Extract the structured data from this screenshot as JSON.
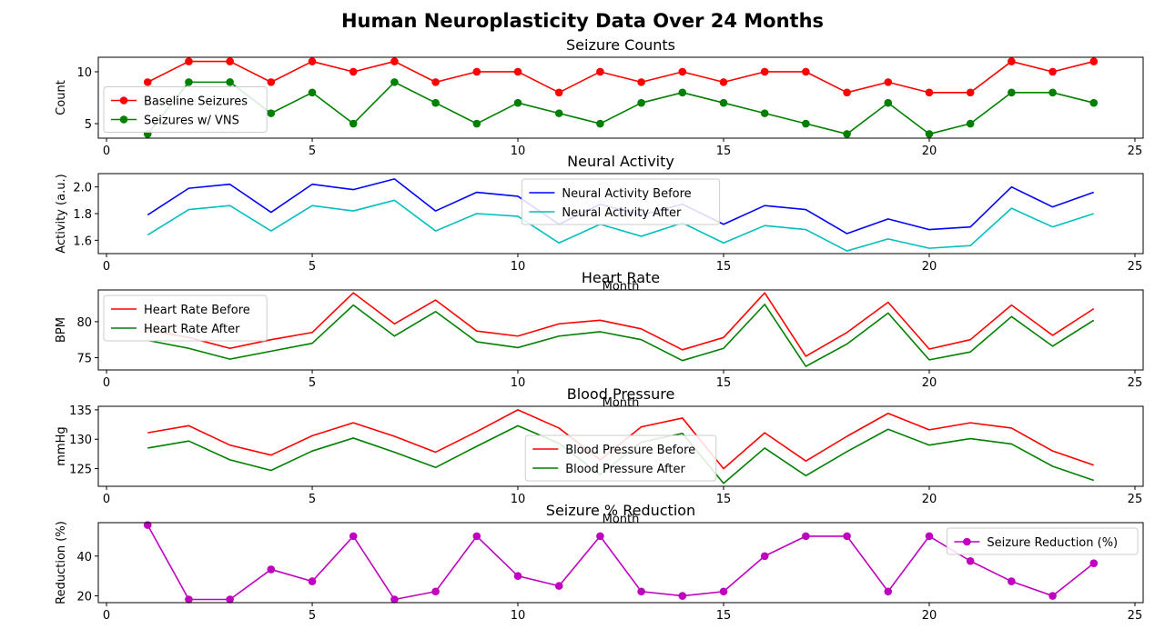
{
  "figure": {
    "title": "Human Neuroplasticity Data Over 24 Months"
  },
  "chart_data": [
    {
      "type": "line",
      "title": "Seizure Counts",
      "xlabel": "",
      "ylabel": "Count",
      "xlim": [
        -0.2,
        25.2
      ],
      "ylim": [
        3.6,
        11.4
      ],
      "xticks": [
        0,
        5,
        10,
        15,
        20,
        25
      ],
      "yticks": [
        5,
        10
      ],
      "legend": "center-left",
      "x": [
        1,
        2,
        3,
        4,
        5,
        6,
        7,
        8,
        9,
        10,
        11,
        12,
        13,
        14,
        15,
        16,
        17,
        18,
        19,
        20,
        21,
        22,
        23,
        24
      ],
      "series": [
        {
          "name": "Baseline Seizures",
          "color": "#ff0000",
          "marker": "circle",
          "values": [
            9,
            11,
            11,
            9,
            11,
            10,
            11,
            9,
            10,
            10,
            8,
            10,
            9,
            10,
            9,
            10,
            10,
            8,
            9,
            8,
            8,
            11,
            10,
            11
          ]
        },
        {
          "name": "Seizures w/ VNS",
          "color": "#008000",
          "marker": "circle",
          "values": [
            4,
            9,
            9,
            6,
            8,
            5,
            9,
            7,
            5,
            7,
            6,
            5,
            7,
            8,
            7,
            6,
            5,
            4,
            7,
            4,
            5,
            8,
            8,
            7
          ]
        }
      ]
    },
    {
      "type": "line",
      "title": "Neural Activity",
      "xlabel": "Month",
      "ylabel": "Activity (a.u.)",
      "xlim": [
        -0.2,
        25.2
      ],
      "ylim": [
        1.5,
        2.1
      ],
      "xticks": [
        0,
        5,
        10,
        15,
        20,
        25
      ],
      "yticks": [
        1.6,
        1.8,
        2.0
      ],
      "ytick_labels": [
        "1.6",
        "1.8",
        "2.0"
      ],
      "legend": "upper-center",
      "x": [
        1,
        2,
        3,
        4,
        5,
        6,
        7,
        8,
        9,
        10,
        11,
        12,
        13,
        14,
        15,
        16,
        17,
        18,
        19,
        20,
        21,
        22,
        23,
        24
      ],
      "series": [
        {
          "name": "Neural Activity Before",
          "color": "#0000ff",
          "values": [
            1.79,
            1.99,
            2.02,
            1.81,
            2.02,
            1.98,
            2.06,
            1.82,
            1.96,
            1.93,
            1.72,
            1.87,
            1.79,
            1.87,
            1.72,
            1.86,
            1.83,
            1.65,
            1.76,
            1.68,
            1.7,
            2.0,
            1.85,
            1.96
          ]
        },
        {
          "name": "Neural Activity After",
          "color": "#00bfbf",
          "values": [
            1.64,
            1.83,
            1.86,
            1.67,
            1.86,
            1.82,
            1.9,
            1.67,
            1.8,
            1.78,
            1.58,
            1.72,
            1.63,
            1.73,
            1.58,
            1.71,
            1.68,
            1.52,
            1.61,
            1.54,
            1.56,
            1.84,
            1.7,
            1.8
          ]
        }
      ]
    },
    {
      "type": "line",
      "title": "Heart Rate",
      "xlabel": "Month",
      "ylabel": "BPM",
      "xlim": [
        -0.2,
        25.2
      ],
      "ylim": [
        73.3,
        84.4
      ],
      "xticks": [
        0,
        5,
        10,
        15,
        20,
        25
      ],
      "yticks": [
        75,
        80
      ],
      "legend": "upper-left",
      "x": [
        1,
        2,
        3,
        4,
        5,
        6,
        7,
        8,
        9,
        10,
        11,
        12,
        13,
        14,
        15,
        16,
        17,
        18,
        19,
        20,
        21,
        22,
        23,
        24
      ],
      "series": [
        {
          "name": "Heart Rate Before",
          "color": "#ff0000",
          "values": [
            78.8,
            77.8,
            76.3,
            77.5,
            78.5,
            84.0,
            79.7,
            83.0,
            78.7,
            78.0,
            79.7,
            80.2,
            79.0,
            76.1,
            77.8,
            84.0,
            75.2,
            78.5,
            82.7,
            76.2,
            77.5,
            82.3,
            78.1,
            81.8
          ]
        },
        {
          "name": "Heart Rate After",
          "color": "#008000",
          "values": [
            77.4,
            76.3,
            74.8,
            75.9,
            77.0,
            82.3,
            78.0,
            81.4,
            77.2,
            76.4,
            78.0,
            78.6,
            77.5,
            74.6,
            76.3,
            82.4,
            73.8,
            76.9,
            81.2,
            74.7,
            75.8,
            80.7,
            76.6,
            80.2
          ]
        }
      ]
    },
    {
      "type": "line",
      "title": "Blood Pressure",
      "xlabel": "Month",
      "ylabel": "mmHg",
      "xlim": [
        -0.2,
        25.2
      ],
      "ylim": [
        122.0,
        135.6
      ],
      "xticks": [
        0,
        5,
        10,
        15,
        20,
        25
      ],
      "yticks": [
        125,
        130,
        135
      ],
      "legend": "lower-center",
      "x": [
        1,
        2,
        3,
        4,
        5,
        6,
        7,
        8,
        9,
        10,
        11,
        12,
        13,
        14,
        15,
        16,
        17,
        18,
        19,
        20,
        21,
        22,
        23,
        24
      ],
      "series": [
        {
          "name": "Blood Pressure Before",
          "color": "#ff0000",
          "values": [
            131.1,
            132.3,
            129.0,
            127.3,
            130.6,
            132.8,
            130.5,
            127.8,
            131.3,
            135.0,
            131.9,
            126.5,
            132.1,
            133.6,
            125.0,
            131.1,
            126.3,
            130.5,
            134.4,
            131.6,
            132.8,
            131.9,
            128.0,
            125.6
          ]
        },
        {
          "name": "Blood Pressure After",
          "color": "#008000",
          "values": [
            128.5,
            129.7,
            126.5,
            124.7,
            128.0,
            130.2,
            127.8,
            125.2,
            128.8,
            132.3,
            129.3,
            124.0,
            129.5,
            131.0,
            122.5,
            128.5,
            123.8,
            127.9,
            131.7,
            129.0,
            130.1,
            129.2,
            125.4,
            123.0
          ]
        }
      ]
    },
    {
      "type": "line",
      "title": "Seizure % Reduction",
      "xlabel": "Month",
      "ylabel": "Reduction (%)",
      "xlim": [
        -0.2,
        25.2
      ],
      "ylim": [
        16.6,
        56.8
      ],
      "xticks": [
        0,
        5,
        10,
        15,
        20,
        25
      ],
      "yticks": [
        20,
        40
      ],
      "legend": "upper-right",
      "x": [
        1,
        2,
        3,
        4,
        5,
        6,
        7,
        8,
        9,
        10,
        11,
        12,
        13,
        14,
        15,
        16,
        17,
        18,
        19,
        20,
        21,
        22,
        23,
        24
      ],
      "series": [
        {
          "name": "Seizure Reduction (%)",
          "color": "#bf00bf",
          "marker": "circle",
          "values": [
            55.6,
            18.2,
            18.2,
            33.3,
            27.3,
            50.0,
            18.2,
            22.2,
            50.0,
            30.0,
            25.0,
            50.0,
            22.2,
            20.0,
            22.2,
            40.0,
            50.0,
            50.0,
            22.2,
            50.0,
            37.5,
            27.3,
            20.0,
            36.4
          ]
        }
      ]
    }
  ]
}
